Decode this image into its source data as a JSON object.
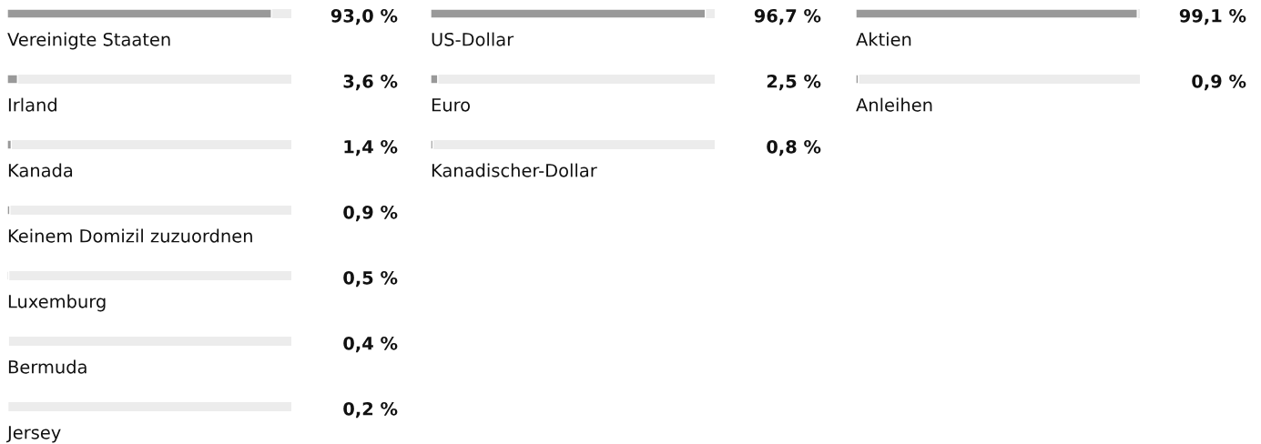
{
  "chart_data": [
    {
      "type": "bar",
      "orientation": "horizontal",
      "color": "#999999",
      "xlim": [
        0,
        100
      ],
      "categories": [
        "Vereinigte Staaten",
        "Irland",
        "Kanada",
        "Keinem Domizil zuzuordnen",
        "Luxemburg",
        "Bermuda",
        "Jersey"
      ],
      "values": [
        93.0,
        3.6,
        1.4,
        0.9,
        0.5,
        0.4,
        0.2
      ],
      "value_labels": [
        "93,0 %",
        "3,6 %",
        "1,4 %",
        "0,9 %",
        "0,5 %",
        "0,4 %",
        "0,2 %"
      ]
    },
    {
      "type": "bar",
      "orientation": "horizontal",
      "color": "#999999",
      "xlim": [
        0,
        100
      ],
      "categories": [
        "US-Dollar",
        "Euro",
        "Kanadischer-Dollar"
      ],
      "values": [
        96.7,
        2.5,
        0.8
      ],
      "value_labels": [
        "96,7 %",
        "2,5 %",
        "0,8 %"
      ]
    },
    {
      "type": "bar",
      "orientation": "horizontal",
      "color": "#999999",
      "xlim": [
        0,
        100
      ],
      "categories": [
        "Aktien",
        "Anleihen"
      ],
      "values": [
        99.1,
        0.9
      ],
      "value_labels": [
        "99,1 %",
        "0,9 %"
      ]
    }
  ]
}
